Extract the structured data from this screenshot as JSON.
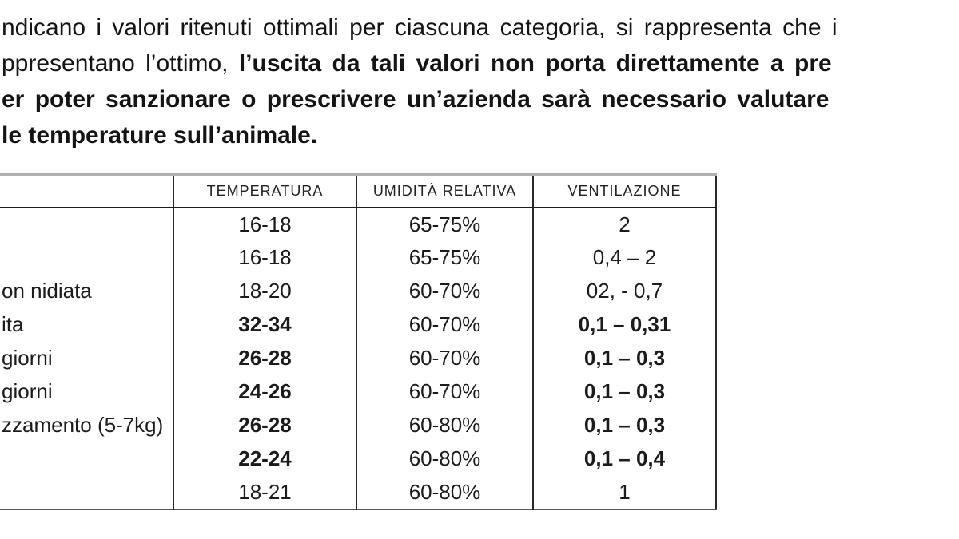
{
  "paragraph": {
    "lines": [
      {
        "normal": "ndicano i valori ritenuti ottimali per ciascuna categoria, si rappresenta che i",
        "bold": ""
      },
      {
        "normal": "ppresentano l’ottimo, ",
        "bold": "l’uscita da tali valori non porta direttamente a pre"
      },
      {
        "normal": "",
        "bold": "er poter sanzionare o prescrivere un’azienda sarà necessario valutare"
      },
      {
        "normal": "",
        "bold": "le temperature sull’animale."
      }
    ]
  },
  "table": {
    "headers": [
      "",
      "TEMPERATURA",
      "UMIDITÀ RELATIVA",
      "VENTILAZIONE"
    ],
    "rows": [
      {
        "label": "",
        "temperatura": "16-18",
        "umidita": "65-75%",
        "ventilazione": "2",
        "bold": false
      },
      {
        "label": "",
        "temperatura": "16-18",
        "umidita": "65-75%",
        "ventilazione": "0,4 – 2",
        "bold": false
      },
      {
        "label": "on nidiata",
        "temperatura": "18-20",
        "umidita": "60-70%",
        "ventilazione": "02, - 0,7",
        "bold": false
      },
      {
        "label": "ita",
        "temperatura": "32-34",
        "umidita": "60-70%",
        "ventilazione": "0,1 – 0,31",
        "bold": true
      },
      {
        "label": "giorni",
        "temperatura": "26-28",
        "umidita": "60-70%",
        "ventilazione": "0,1 – 0,3",
        "bold": true
      },
      {
        "label": "giorni",
        "temperatura": "24-26",
        "umidita": "60-70%",
        "ventilazione": "0,1 – 0,3",
        "bold": true
      },
      {
        "label": "zzamento (5-7kg)",
        "temperatura": "26-28",
        "umidita": "60-80%",
        "ventilazione": "0,1 – 0,3",
        "bold": true
      },
      {
        "label": "",
        "temperatura": "22-24",
        "umidita": "60-80%",
        "ventilazione": "0,1 – 0,4",
        "bold": true
      },
      {
        "label": "",
        "temperatura": "18-21",
        "umidita": "60-80%",
        "ventilazione": "1",
        "bold": false
      }
    ]
  }
}
